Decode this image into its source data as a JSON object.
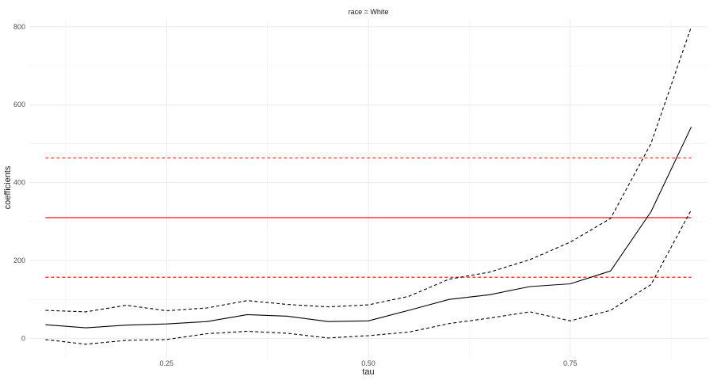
{
  "chart_data": {
    "type": "line",
    "facet_label": "race = White",
    "xlabel": "tau",
    "ylabel": "coefficients",
    "xlim": [
      0.08,
      0.92
    ],
    "ylim": [
      -50,
      820
    ],
    "x_ticks": [
      0.25,
      0.5,
      0.75
    ],
    "x_tick_labels": [
      "0.25",
      "0.50",
      "0.75"
    ],
    "y_ticks": [
      0,
      200,
      400,
      600,
      800
    ],
    "y_tick_labels": [
      "0",
      "200",
      "400",
      "600",
      "800"
    ],
    "grid": true,
    "tau": [
      0.1,
      0.15,
      0.2,
      0.25,
      0.3,
      0.35,
      0.4,
      0.45,
      0.5,
      0.55,
      0.6,
      0.65,
      0.7,
      0.75,
      0.8,
      0.85,
      0.9
    ],
    "series": [
      {
        "role": "estimate",
        "color": "#000000",
        "dash": "solid",
        "values": [
          35,
          27,
          34,
          37,
          43,
          61,
          57,
          43,
          45,
          72,
          100,
          112,
          133,
          140,
          173,
          325,
          543
        ]
      },
      {
        "role": "upper-ci",
        "color": "#000000",
        "dash": "dashed",
        "values": [
          72,
          68,
          85,
          71,
          78,
          97,
          87,
          81,
          86,
          108,
          152,
          170,
          202,
          247,
          308,
          500,
          800
        ]
      },
      {
        "role": "lower-ci",
        "color": "#000000",
        "dash": "dashed",
        "values": [
          -3,
          -15,
          -5,
          -3,
          12,
          18,
          13,
          1,
          7,
          16,
          38,
          52,
          68,
          45,
          72,
          138,
          330
        ]
      }
    ],
    "reference_lines": [
      {
        "role": "ols-estimate",
        "color": "#ff0000",
        "dash": "solid",
        "y": 310
      },
      {
        "role": "ols-upper-ci",
        "color": "#ff0000",
        "dash": "dashed",
        "y": 463
      },
      {
        "role": "ols-lower-ci",
        "color": "#ff0000",
        "dash": "dashed",
        "y": 157
      }
    ]
  }
}
